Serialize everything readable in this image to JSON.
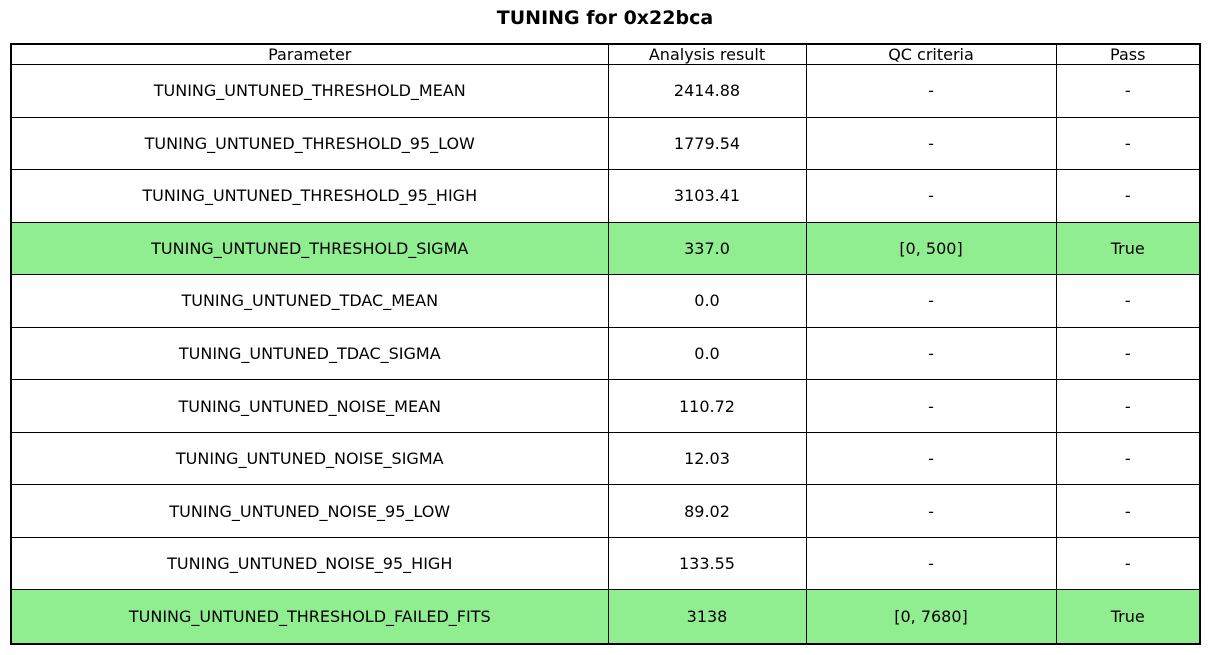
{
  "chart_data": {
    "type": "table",
    "title": "TUNING for 0x22bca",
    "columns": [
      "Parameter",
      "Analysis result",
      "QC criteria",
      "Pass"
    ],
    "rows": [
      {
        "parameter": "TUNING_UNTUNED_THRESHOLD_MEAN",
        "analysis_result": "2414.88",
        "qc_criteria": "-",
        "pass": "-",
        "highlight": false
      },
      {
        "parameter": "TUNING_UNTUNED_THRESHOLD_95_LOW",
        "analysis_result": "1779.54",
        "qc_criteria": "-",
        "pass": "-",
        "highlight": false
      },
      {
        "parameter": "TUNING_UNTUNED_THRESHOLD_95_HIGH",
        "analysis_result": "3103.41",
        "qc_criteria": "-",
        "pass": "-",
        "highlight": false
      },
      {
        "parameter": "TUNING_UNTUNED_THRESHOLD_SIGMA",
        "analysis_result": "337.0",
        "qc_criteria": "[0, 500]",
        "pass": "True",
        "highlight": true
      },
      {
        "parameter": "TUNING_UNTUNED_TDAC_MEAN",
        "analysis_result": "0.0",
        "qc_criteria": "-",
        "pass": "-",
        "highlight": false
      },
      {
        "parameter": "TUNING_UNTUNED_TDAC_SIGMA",
        "analysis_result": "0.0",
        "qc_criteria": "-",
        "pass": "-",
        "highlight": false
      },
      {
        "parameter": "TUNING_UNTUNED_NOISE_MEAN",
        "analysis_result": "110.72",
        "qc_criteria": "-",
        "pass": "-",
        "highlight": false
      },
      {
        "parameter": "TUNING_UNTUNED_NOISE_SIGMA",
        "analysis_result": "12.03",
        "qc_criteria": "-",
        "pass": "-",
        "highlight": false
      },
      {
        "parameter": "TUNING_UNTUNED_NOISE_95_LOW",
        "analysis_result": "89.02",
        "qc_criteria": "-",
        "pass": "-",
        "highlight": false
      },
      {
        "parameter": "TUNING_UNTUNED_NOISE_95_HIGH",
        "analysis_result": "133.55",
        "qc_criteria": "-",
        "pass": "-",
        "highlight": false
      },
      {
        "parameter": "TUNING_UNTUNED_THRESHOLD_FAILED_FITS",
        "analysis_result": "3138",
        "qc_criteria": "[0, 7680]",
        "pass": "True",
        "highlight": true
      }
    ],
    "highlighted_rows": [
      3,
      10
    ],
    "colors": {
      "highlight_green": "#90EE90",
      "border": "#000000",
      "background": "#ffffff",
      "text": "#000000"
    },
    "layout_hints": {
      "grid": "all-cell-borders",
      "header_position": "top"
    }
  }
}
